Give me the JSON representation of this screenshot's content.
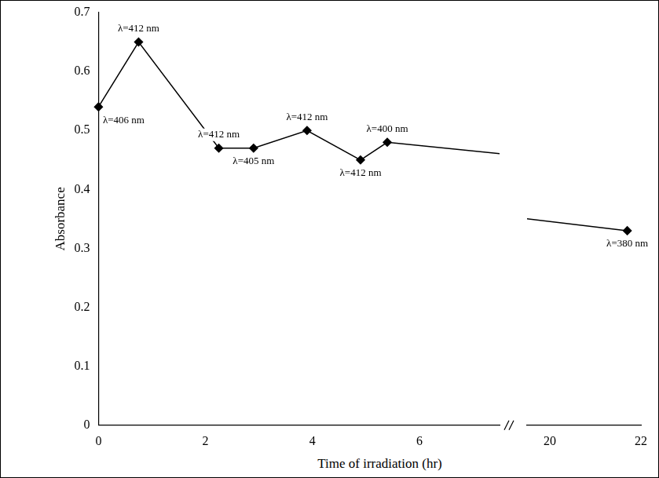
{
  "chart_data": {
    "type": "line",
    "x_label": "Time of irradiation (hr)",
    "y_label": "Absorbance",
    "x": [
      0,
      0.75,
      2.25,
      2.9,
      3.9,
      4.9,
      5.4,
      21.7
    ],
    "values": [
      0.54,
      0.65,
      0.47,
      0.47,
      0.5,
      0.45,
      0.48,
      0.33
    ],
    "annotations": [
      "λ=406 nm",
      "λ=412 nm",
      "λ=412 nm",
      "λ=405 nm",
      "λ=412 nm",
      "λ=412 nm",
      "λ=400 nm",
      "λ=380 nm"
    ],
    "color": "#000000",
    "marker": "diamond",
    "line_style": "solid",
    "xlim": [
      [
        0,
        7.5
      ],
      [
        19.5,
        22
      ]
    ],
    "xticks": [
      0,
      2,
      4,
      6,
      20,
      22
    ],
    "ylim": [
      0,
      0.7
    ],
    "yticks": [
      0,
      0.1,
      0.2,
      0.3,
      0.4,
      0.5,
      0.6,
      0.7
    ],
    "grid": false
  }
}
